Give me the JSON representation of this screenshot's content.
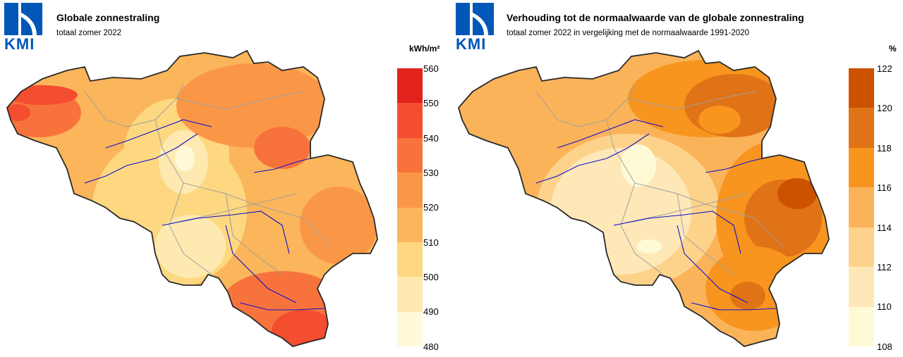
{
  "brand": {
    "logo_text": "KMI",
    "color": "#0057b8"
  },
  "panels": [
    {
      "title": "Globale zonnestraling",
      "subtitle": "totaal zomer 2022",
      "unit": "kWh/m²",
      "legend": {
        "ticks": [
          "560",
          "550",
          "540",
          "530",
          "520",
          "510",
          "500",
          "490",
          "480"
        ],
        "colors": [
          "#e3221c",
          "#f44d30",
          "#f8733c",
          "#fa9746",
          "#fbb55a",
          "#fdd880",
          "#feeab0",
          "#fff9d9"
        ]
      }
    },
    {
      "title": "Verhouding tot de normaalwaarde van de globale zonnestraling",
      "subtitle": "totaal zomer 2022 in vergelijking met de normaalwaarde 1991-2020",
      "unit": "%",
      "legend": {
        "ticks": [
          "122",
          "120",
          "118",
          "116",
          "114",
          "112",
          "110",
          "108"
        ],
        "colors": [
          "#cc5200",
          "#e07316",
          "#f7951f",
          "#fbb35a",
          "#fdd38c",
          "#ffe8b8",
          "#fffad6"
        ]
      }
    }
  ]
}
